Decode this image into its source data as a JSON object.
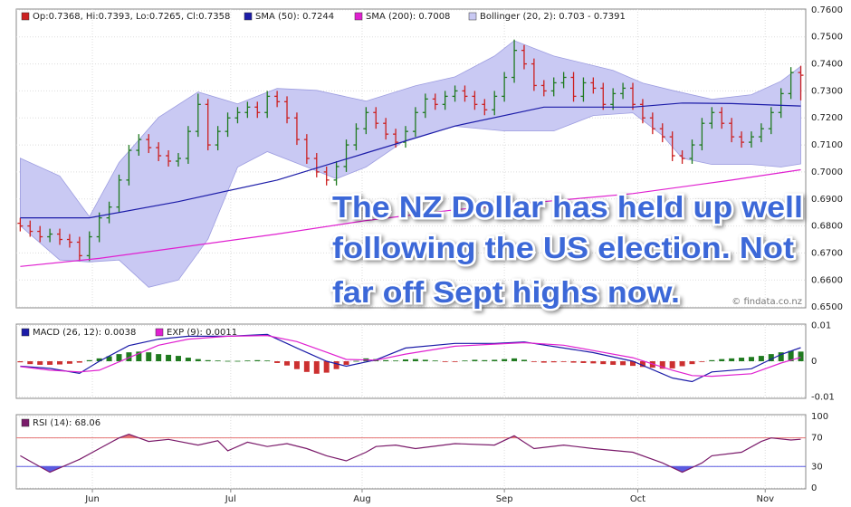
{
  "chart_data": [
    {
      "type": "ohlc",
      "legend_label": "Op:0.7368, Hi:0.7393, Lo:0.7265, Cl:0.7358",
      "up_color": "#1f7a1f",
      "down_color": "#cc2020",
      "xlim": [
        -0.4,
        79.5
      ],
      "ylim": [
        0.6497,
        0.7603
      ],
      "yticks": [
        {
          "value": 0.65,
          "label": "0.6500"
        },
        {
          "value": 0.66,
          "label": "0.6600"
        },
        {
          "value": 0.67,
          "label": "0.6700"
        },
        {
          "value": 0.68,
          "label": "0.6800"
        },
        {
          "value": 0.69,
          "label": "0.6900"
        },
        {
          "value": 0.7,
          "label": "0.7000"
        },
        {
          "value": 0.71,
          "label": "0.7100"
        },
        {
          "value": 0.72,
          "label": "0.7200"
        },
        {
          "value": 0.73,
          "label": "0.7300"
        },
        {
          "value": 0.74,
          "label": "0.7400"
        },
        {
          "value": 0.75,
          "label": "0.7500"
        },
        {
          "value": 0.76,
          "label": "0.7600"
        }
      ],
      "grid": true,
      "open": [
        0.681,
        0.68,
        0.678,
        0.676,
        0.677,
        0.675,
        0.674,
        0.669,
        0.676,
        0.683,
        0.687,
        0.697,
        0.708,
        0.712,
        0.709,
        0.706,
        0.704,
        0.705,
        0.715,
        0.725,
        0.71,
        0.715,
        0.72,
        0.722,
        0.724,
        0.722,
        0.728,
        0.726,
        0.72,
        0.712,
        0.705,
        0.7,
        0.697,
        0.702,
        0.71,
        0.716,
        0.722,
        0.718,
        0.714,
        0.711,
        0.715,
        0.722,
        0.727,
        0.725,
        0.728,
        0.73,
        0.728,
        0.725,
        0.723,
        0.728,
        0.735,
        0.745,
        0.74,
        0.732,
        0.73,
        0.733,
        0.735,
        0.728,
        0.733,
        0.731,
        0.725,
        0.729,
        0.731,
        0.725,
        0.72,
        0.716,
        0.713,
        0.706,
        0.705,
        0.71,
        0.718,
        0.722,
        0.718,
        0.713,
        0.711,
        0.713,
        0.716,
        0.722,
        0.729,
        0.7368
      ],
      "high": [
        0.683,
        0.682,
        0.68,
        0.679,
        0.679,
        0.677,
        0.676,
        0.678,
        0.685,
        0.689,
        0.699,
        0.71,
        0.714,
        0.714,
        0.711,
        0.708,
        0.707,
        0.717,
        0.729,
        0.727,
        0.717,
        0.722,
        0.724,
        0.726,
        0.726,
        0.73,
        0.73,
        0.728,
        0.722,
        0.714,
        0.707,
        0.702,
        0.704,
        0.712,
        0.718,
        0.724,
        0.724,
        0.72,
        0.716,
        0.717,
        0.724,
        0.729,
        0.729,
        0.73,
        0.732,
        0.732,
        0.73,
        0.727,
        0.73,
        0.737,
        0.749,
        0.747,
        0.742,
        0.734,
        0.735,
        0.737,
        0.737,
        0.735,
        0.735,
        0.733,
        0.731,
        0.733,
        0.733,
        0.727,
        0.722,
        0.718,
        0.715,
        0.708,
        0.712,
        0.72,
        0.724,
        0.724,
        0.72,
        0.715,
        0.715,
        0.718,
        0.724,
        0.731,
        0.7388,
        0.7393
      ],
      "low": [
        0.678,
        0.676,
        0.674,
        0.674,
        0.673,
        0.672,
        0.667,
        0.667,
        0.674,
        0.681,
        0.685,
        0.695,
        0.706,
        0.707,
        0.704,
        0.702,
        0.702,
        0.703,
        0.713,
        0.708,
        0.708,
        0.713,
        0.718,
        0.72,
        0.72,
        0.72,
        0.724,
        0.718,
        0.71,
        0.703,
        0.698,
        0.695,
        0.695,
        0.7,
        0.708,
        0.714,
        0.716,
        0.712,
        0.709,
        0.709,
        0.713,
        0.72,
        0.723,
        0.723,
        0.726,
        0.726,
        0.723,
        0.721,
        0.721,
        0.726,
        0.733,
        0.738,
        0.73,
        0.728,
        0.728,
        0.731,
        0.726,
        0.726,
        0.729,
        0.723,
        0.723,
        0.727,
        0.723,
        0.718,
        0.714,
        0.711,
        0.704,
        0.703,
        0.703,
        0.708,
        0.716,
        0.716,
        0.711,
        0.709,
        0.709,
        0.711,
        0.714,
        0.72,
        0.727,
        0.7265
      ],
      "close": [
        0.68,
        0.678,
        0.676,
        0.677,
        0.675,
        0.674,
        0.669,
        0.676,
        0.683,
        0.687,
        0.697,
        0.708,
        0.712,
        0.709,
        0.706,
        0.704,
        0.705,
        0.715,
        0.725,
        0.71,
        0.715,
        0.72,
        0.722,
        0.724,
        0.722,
        0.728,
        0.726,
        0.72,
        0.712,
        0.705,
        0.7,
        0.697,
        0.702,
        0.71,
        0.716,
        0.722,
        0.718,
        0.714,
        0.711,
        0.715,
        0.722,
        0.727,
        0.725,
        0.728,
        0.73,
        0.728,
        0.725,
        0.723,
        0.728,
        0.735,
        0.745,
        0.74,
        0.732,
        0.73,
        0.733,
        0.735,
        0.728,
        0.733,
        0.731,
        0.725,
        0.729,
        0.731,
        0.725,
        0.72,
        0.716,
        0.713,
        0.706,
        0.705,
        0.71,
        0.718,
        0.722,
        0.718,
        0.713,
        0.711,
        0.713,
        0.716,
        0.722,
        0.729,
        0.7368,
        0.7358
      ],
      "band": {
        "name": "Bollinger (20, 2): 0.703 - 0.7391",
        "color": "#c9c9f3",
        "edge_color": "#9d9de0",
        "x_upper": [
          0,
          4,
          7,
          10,
          14,
          18,
          22,
          26,
          30,
          35,
          40,
          44,
          48,
          50,
          54,
          60,
          63,
          66,
          70,
          74,
          77,
          79
        ],
        "upper": [
          0.7051,
          0.6985,
          0.6834,
          0.7035,
          0.7202,
          0.7296,
          0.7252,
          0.7309,
          0.7302,
          0.7262,
          0.7319,
          0.7352,
          0.7429,
          0.7486,
          0.7429,
          0.7376,
          0.7329,
          0.7302,
          0.7269,
          0.7286,
          0.7336,
          0.7391
        ],
        "x_lower": [
          0,
          4,
          7,
          10,
          12,
          13,
          16,
          19,
          22,
          25,
          29,
          32,
          35,
          39,
          44,
          49,
          54,
          58,
          62,
          65,
          67,
          70,
          74,
          77,
          79
        ],
        "lower": [
          0.6801,
          0.6674,
          0.6667,
          0.6674,
          0.6607,
          0.6573,
          0.66,
          0.6751,
          0.7018,
          0.7075,
          0.7018,
          0.6975,
          0.7018,
          0.7118,
          0.7169,
          0.7152,
          0.7152,
          0.7209,
          0.7219,
          0.7135,
          0.7051,
          0.7028,
          0.7028,
          0.7018,
          0.703
        ]
      },
      "series": [
        {
          "name": "SMA (50): 0.7244",
          "color": "#1c1ca8",
          "x": [
            0,
            7,
            16,
            26,
            35,
            44,
            53,
            62,
            67,
            72,
            79
          ],
          "values": [
            0.683,
            0.683,
            0.689,
            0.697,
            0.707,
            0.717,
            0.724,
            0.724,
            0.7255,
            0.7253,
            0.7244
          ]
        },
        {
          "name": "SMA (200): 0.7008",
          "color": "#e020d0",
          "x": [
            0,
            8,
            16,
            26,
            35,
            44,
            53,
            62,
            72,
            79
          ],
          "values": [
            0.665,
            0.668,
            0.672,
            0.677,
            0.682,
            0.686,
            0.689,
            0.692,
            0.697,
            0.7008
          ]
        }
      ],
      "annotation": [
        "The NZ Dollar has held up well",
        "following the US election. Not",
        "far off Sept highs now."
      ],
      "source": "© findata.co.nz"
    },
    {
      "type": "macd",
      "xlim": [
        -0.4,
        79.5
      ],
      "ylim": [
        -0.0104,
        0.0104
      ],
      "yticks": [
        0.01,
        0,
        -0.01
      ],
      "grid": true,
      "up_color": "#1f7a1f",
      "down_color": "#cc3030",
      "histogram": [
        -0.0003,
        -0.0008,
        -0.001,
        -0.001,
        -0.0009,
        -0.0007,
        -0.0004,
        0.0003,
        0.0008,
        0.0014,
        0.002,
        0.0025,
        0.0027,
        0.0025,
        0.002,
        0.0018,
        0.0015,
        0.001,
        0.0006,
        0.0003,
        0.0002,
        0.0001,
        0.0001,
        0.0002,
        0.0003,
        0.0002,
        -0.0005,
        -0.0012,
        -0.0022,
        -0.003,
        -0.0035,
        -0.0032,
        -0.0022,
        -0.001,
        0.0001,
        0.0008,
        0.0006,
        0.0003,
        0.0002,
        0.0005,
        0.0006,
        0.0004,
        0.0002,
        -0.0001,
        -0.0002,
        0.0002,
        0.0004,
        0.0003,
        0.0004,
        0.0006,
        0.0008,
        0.0004,
        -0.0002,
        -0.0004,
        -0.0003,
        -0.0002,
        -0.0004,
        -0.0005,
        -0.0006,
        -0.0008,
        -0.001,
        -0.0011,
        -0.0013,
        -0.0016,
        -0.0018,
        -0.0021,
        -0.002,
        -0.0014,
        -0.0008,
        -0.0002,
        0.0003,
        0.0006,
        0.0008,
        0.001,
        0.0012,
        0.0015,
        0.002,
        0.0025,
        0.0029,
        0.0027
      ],
      "series": [
        {
          "name": "MACD (26, 12): 0.0038",
          "color": "#1c1ca8",
          "x": [
            0,
            3,
            6,
            8,
            11,
            14,
            17,
            21,
            25,
            28,
            31,
            33,
            36,
            39,
            44,
            48,
            51,
            55,
            58,
            62,
            66,
            68,
            70,
            74,
            77,
            79
          ],
          "values": [
            -0.0014,
            -0.002,
            -0.0034,
            0,
            0.0044,
            0.0062,
            0.007,
            0.007,
            0.0075,
            0.0037,
            0,
            -0.0014,
            0.0004,
            0.0037,
            0.005,
            0.005,
            0.0054,
            0.0037,
            0.0024,
            0,
            -0.0047,
            -0.0057,
            -0.003,
            -0.0021,
            0.0019,
            0.0038
          ]
        },
        {
          "name": "EXP (9): 0.0011",
          "color": "#e020d0",
          "x": [
            0,
            3,
            6,
            8,
            11,
            14,
            17,
            21,
            25,
            28,
            31,
            33,
            36,
            39,
            44,
            48,
            51,
            55,
            58,
            62,
            66,
            68,
            70,
            74,
            77,
            79
          ],
          "values": [
            -0.0015,
            -0.0025,
            -0.003,
            -0.0025,
            0.001,
            0.0045,
            0.0062,
            0.007,
            0.0072,
            0.0055,
            0.0025,
            0.0005,
            0.0003,
            0.002,
            0.0042,
            0.0048,
            0.0052,
            0.0045,
            0.003,
            0.001,
            -0.0025,
            -0.004,
            -0.0042,
            -0.0035,
            -0.0005,
            0.0011
          ]
        }
      ]
    },
    {
      "type": "rsi",
      "xlim": [
        -0.4,
        79.5
      ],
      "ylim": [
        -1.3,
        102.5
      ],
      "yticks": [
        0,
        30,
        70,
        100
      ],
      "grid": true,
      "overbought": 70,
      "oversold": 30,
      "overbought_color": "#e57373",
      "oversold_color": "#5b5be0",
      "series": [
        {
          "name": "RSI (14): 68.06",
          "color": "#7a1a6a",
          "x": [
            0,
            3,
            6,
            8,
            10,
            11,
            13,
            15,
            18,
            20,
            21,
            23,
            25,
            27,
            29,
            31,
            33,
            35,
            36,
            38,
            40,
            44,
            48,
            50,
            52,
            55,
            58,
            62,
            65,
            67,
            69,
            70,
            73,
            75,
            76,
            78,
            79
          ],
          "values": [
            45,
            22,
            40,
            55,
            70,
            75,
            65,
            68,
            60,
            66,
            52,
            64,
            58,
            62,
            55,
            45,
            38,
            50,
            58,
            60,
            55,
            62,
            60,
            73,
            55,
            60,
            55,
            50,
            35,
            22,
            35,
            45,
            50,
            65,
            70,
            67,
            68.06
          ]
        }
      ],
      "xticks": [
        {
          "value": 7.3,
          "label": "Jun"
        },
        {
          "value": 21.3,
          "label": "Jul"
        },
        {
          "value": 34.6,
          "label": "Aug"
        },
        {
          "value": 49.0,
          "label": "Sep"
        },
        {
          "value": 62.5,
          "label": "Oct"
        },
        {
          "value": 75.4,
          "label": "Nov"
        }
      ]
    }
  ]
}
